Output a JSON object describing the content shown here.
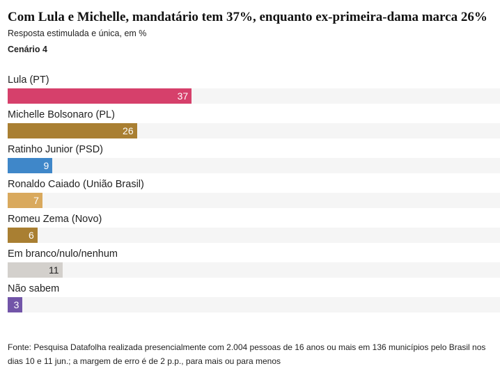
{
  "chart_data": {
    "type": "bar",
    "orientation": "horizontal",
    "title": "Com Lula e Michelle, mandatário tem 37%, enquanto ex-primeira-dama marca 26%",
    "subtitle": "Resposta estimulada e única, em %",
    "scenario": "Cenário 4",
    "categories": [
      "Lula (PT)",
      "Michelle Bolsonaro (PL)",
      "Ratinho Junior (PSD)",
      "Ronaldo Caiado (União Brasil)",
      "Romeu Zema (Novo)",
      "Em branco/nulo/nenhum",
      "Não sabem"
    ],
    "values": [
      37,
      26,
      9,
      7,
      6,
      11,
      3
    ],
    "colors": [
      "#d6406b",
      "#a97f32",
      "#3f87c9",
      "#d9a95d",
      "#a97f32",
      "#d3d0cc",
      "#7255a8"
    ],
    "label_dark": [
      false,
      false,
      false,
      false,
      false,
      true,
      false
    ],
    "xlim": [
      0,
      100
    ],
    "grid": false,
    "legend": "none",
    "source": "Fonte: Pesquisa Datafolha realizada presencialmente com 2.004 pessoas de 16 anos ou mais em 136 municípios pelo Brasil nos dias 10 e 11 jun.; a margem de erro é de 2 p.p., para mais ou para menos"
  }
}
